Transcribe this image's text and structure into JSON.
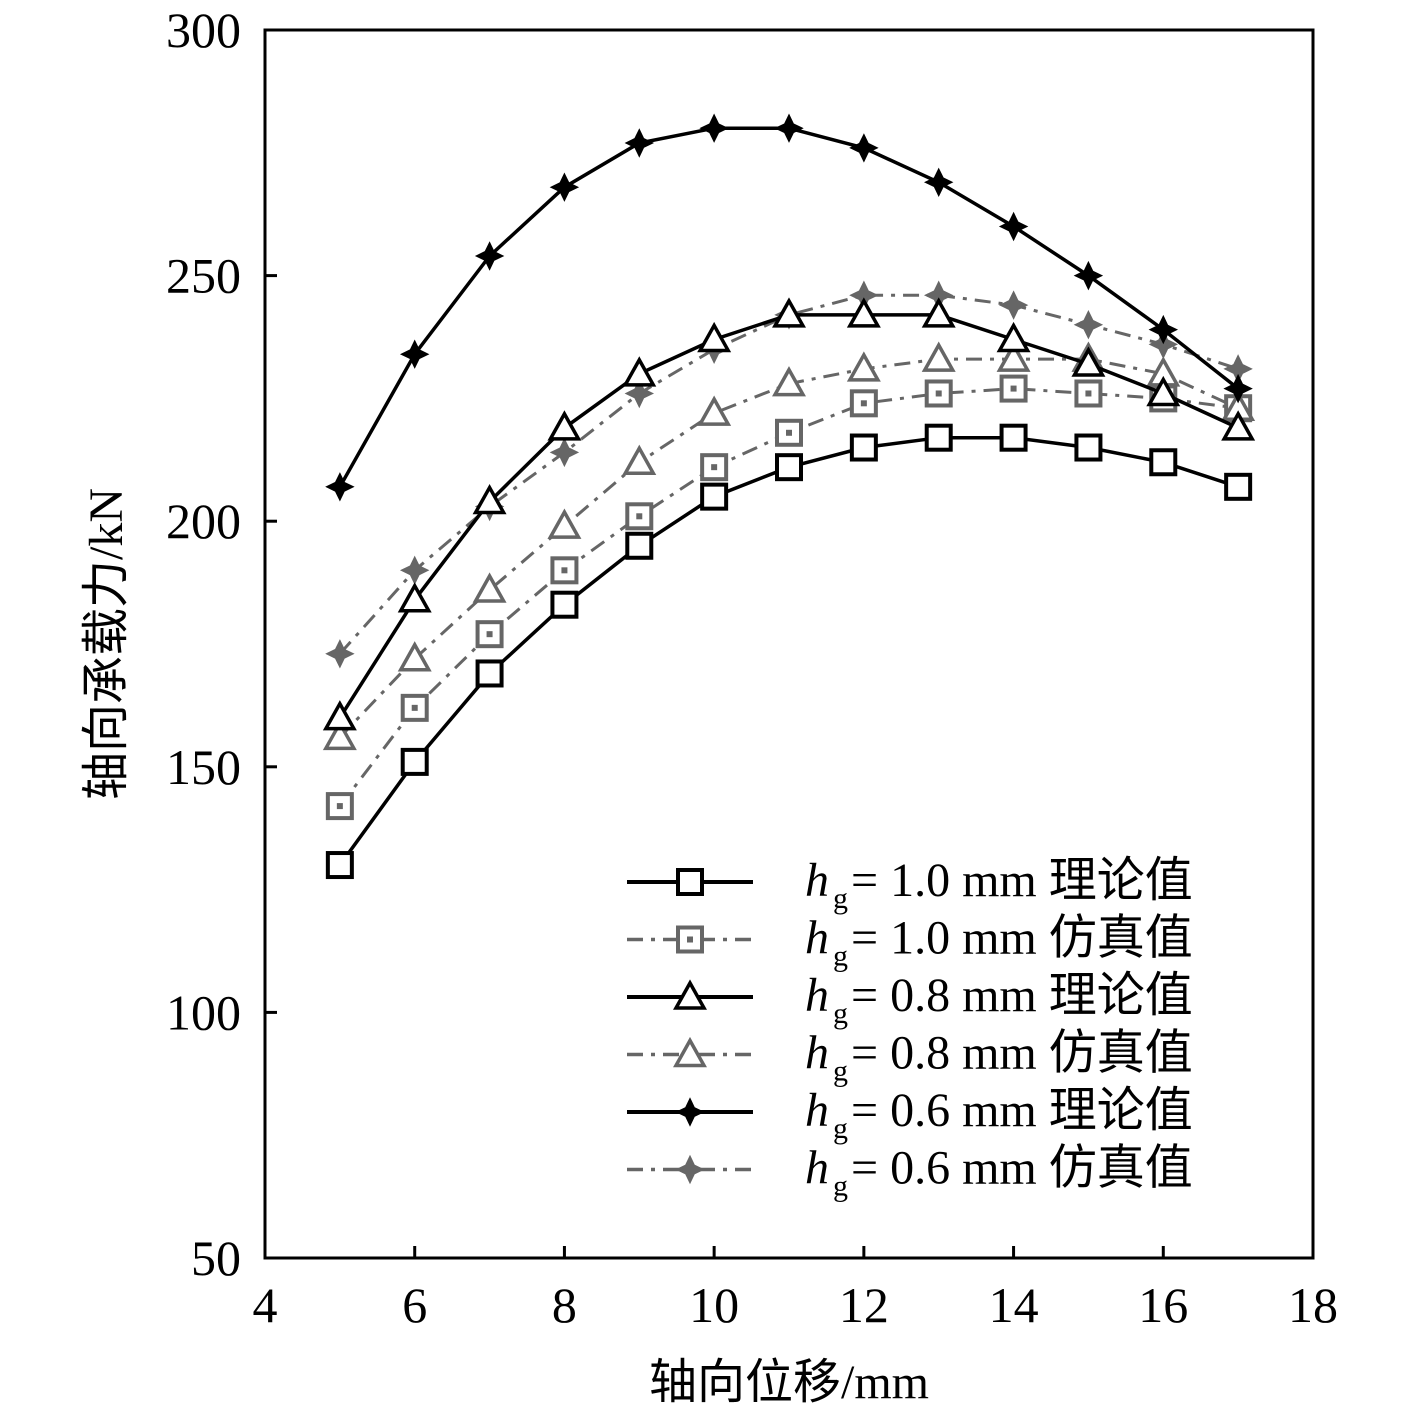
{
  "chart_data": {
    "type": "line",
    "title": "",
    "xlabel": "轴向位移/mm",
    "ylabel": "轴向承载力/kN",
    "xlim": [
      4,
      18
    ],
    "ylim": [
      50,
      300
    ],
    "xticks": [
      "4",
      "6",
      "8",
      "10",
      "12",
      "14",
      "16",
      "18"
    ],
    "yticks": [
      "50",
      "100",
      "150",
      "200",
      "250",
      "300"
    ],
    "grid": false,
    "legend_position": "bottom-right",
    "x": [
      5,
      6,
      7,
      8,
      9,
      10,
      11,
      12,
      13,
      14,
      15,
      16,
      17
    ],
    "series": [
      {
        "name": "h_g = 1.0 mm 理论值",
        "legend_prefix": "h",
        "legend_sub": "g",
        "legend_suffix": " = 1.0 mm 理论值",
        "marker": "square",
        "style": "solid",
        "color": "#000000",
        "values": [
          130,
          151,
          169,
          183,
          195,
          205,
          211,
          215,
          217,
          217,
          215,
          212,
          207
        ]
      },
      {
        "name": "h_g = 1.0 mm 仿真值",
        "legend_prefix": "h",
        "legend_sub": "g",
        "legend_suffix": " = 1.0 mm 仿真值",
        "marker": "square-dot",
        "style": "dashdot",
        "color": "#666666",
        "values": [
          142,
          162,
          177,
          190,
          201,
          211,
          218,
          224,
          226,
          227,
          226,
          225,
          223
        ]
      },
      {
        "name": "h_g = 0.8 mm 理论值",
        "legend_prefix": "h",
        "legend_sub": "g",
        "legend_suffix": " = 0.8 mm 理论值",
        "marker": "triangle",
        "style": "solid",
        "color": "#000000",
        "values": [
          160,
          184,
          204,
          219,
          230,
          237,
          242,
          242,
          242,
          237,
          232,
          226,
          219
        ]
      },
      {
        "name": "h_g = 0.8 mm 仿真值",
        "legend_prefix": "h",
        "legend_sub": "g",
        "legend_suffix": " = 0.8 mm 仿真值",
        "marker": "triangle",
        "style": "dashdot",
        "color": "#666666",
        "values": [
          156,
          172,
          186,
          199,
          212,
          222,
          228,
          231,
          233,
          233,
          233,
          230,
          223
        ]
      },
      {
        "name": "h_g = 0.6 mm 理论值",
        "legend_prefix": "h",
        "legend_sub": "g",
        "legend_suffix": " = 0.6 mm 理论值",
        "marker": "star",
        "style": "solid",
        "color": "#000000",
        "values": [
          207,
          234,
          254,
          268,
          277,
          280,
          280,
          276,
          269,
          260,
          250,
          239,
          227
        ]
      },
      {
        "name": "h_g = 0.6 mm 仿真值",
        "legend_prefix": "h",
        "legend_sub": "g",
        "legend_suffix": " = 0.6 mm 仿真值",
        "marker": "star",
        "style": "dashdot",
        "color": "#666666",
        "values": [
          173,
          190,
          203,
          214,
          226,
          235,
          242,
          246,
          246,
          244,
          240,
          236,
          231
        ]
      }
    ]
  }
}
